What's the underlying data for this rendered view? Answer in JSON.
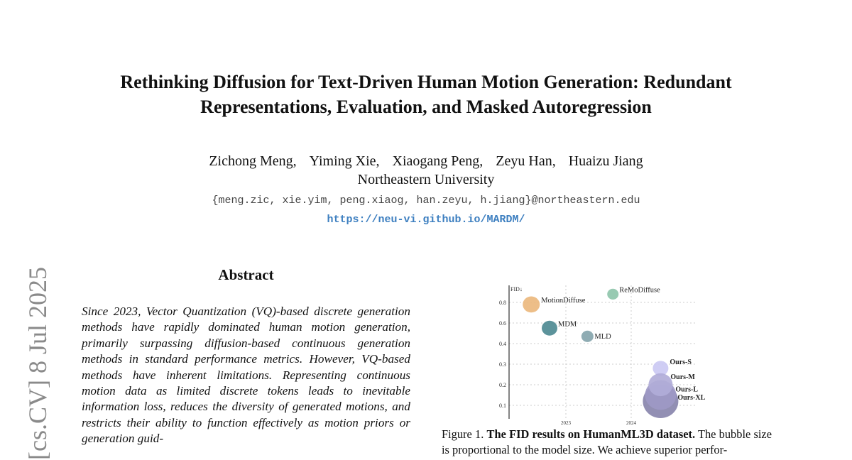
{
  "paper": {
    "title_line1": "Rethinking Diffusion for Text-Driven Human Motion Generation: Redundant",
    "title_line2": "Representations, Evaluation, and Masked Autoregression",
    "authors": [
      "Zichong Meng,",
      "Yiming Xie,",
      "Xiaogang Peng,",
      "Zeyu Han,",
      "Huaizu Jiang"
    ],
    "affiliation": "Northeastern University",
    "emails": "{meng.zic, xie.yim, peng.xiaog, han.zeyu, h.jiang}@northeastern.edu",
    "project_url": "https://neu-vi.github.io/MARDM/",
    "arxiv_stamp": "[cs.CV]  8 Jul 2025",
    "abstract_heading": "Abstract",
    "abstract_text": "Since 2023, Vector Quantization (VQ)-based discrete generation methods have rapidly dominated human motion generation, primarily surpassing diffusion-based continuous generation methods in standard performance metrics.  However, VQ-based methods have inherent limitations. Representing continuous motion data as limited discrete tokens leads to inevitable information loss, reduces the diversity of generated motions, and restricts their ability to function effectively as motion priors or generation guid-",
    "caption_label": "Figure 1.",
    "caption_bold": "The FID results on HumanML3D dataset.",
    "caption_text": "The bubble size is proportional to the model size. We achieve superior perfor-"
  },
  "chart_data": {
    "type": "scatter",
    "ylabel": "FID↓",
    "y_ticks": [
      0.1,
      0.2,
      0.3,
      0.4,
      0.6,
      0.8
    ],
    "x_ticks": [
      2023,
      2024
    ],
    "grid": true,
    "points": [
      {
        "name": "MotionDiffuse",
        "x": 2022.47,
        "y": 0.78,
        "size": 1.2,
        "color": "#ebb97e",
        "bold": false
      },
      {
        "name": "ReMoDiffuse",
        "x": 2023.72,
        "y": 0.88,
        "size": 0.8,
        "color": "#8fc6ab",
        "bold": false
      },
      {
        "name": "MDM",
        "x": 2022.75,
        "y": 0.55,
        "size": 1.1,
        "color": "#4e8a93",
        "bold": false
      },
      {
        "name": "MLD",
        "x": 2023.33,
        "y": 0.47,
        "size": 0.85,
        "color": "#86a5ad",
        "bold": false
      },
      {
        "name": "Ours-S",
        "x": 2024.45,
        "y": 0.28,
        "size": 1.1,
        "color": "#cbc9f3",
        "bold": true
      },
      {
        "name": "Ours-XL",
        "x": 2024.45,
        "y": 0.12,
        "size": 2.5,
        "color": "#8985ac",
        "bold": true
      },
      {
        "name": "Ours-L",
        "x": 2024.45,
        "y": 0.15,
        "size": 2.2,
        "color": "#9e99c5",
        "bold": true
      },
      {
        "name": "Ours-M",
        "x": 2024.45,
        "y": 0.2,
        "size": 1.7,
        "color": "#b1acd8",
        "bold": true
      }
    ]
  }
}
